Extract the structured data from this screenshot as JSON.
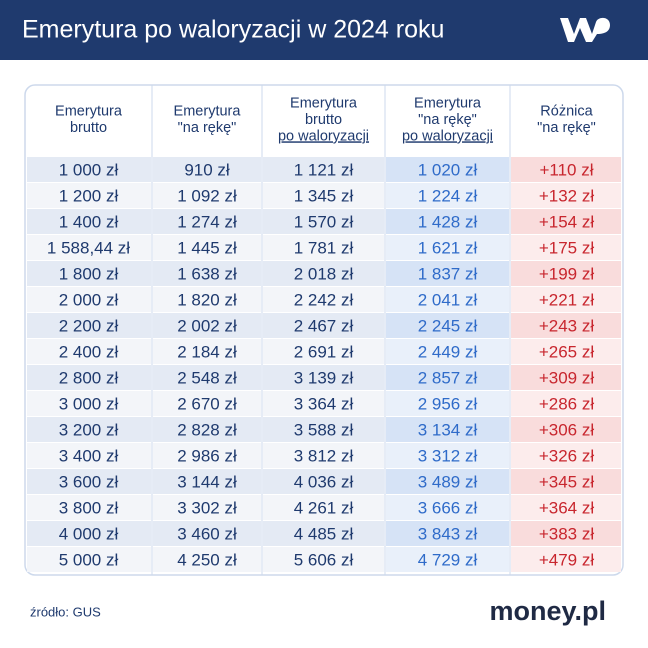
{
  "header": {
    "title": "Emerytura po waloryzacji w 2024 roku"
  },
  "table": {
    "columns": [
      [
        "Emerytura",
        "brutto"
      ],
      [
        "Emerytura",
        "\"na rękę\""
      ],
      [
        "Emerytura",
        "brutto",
        "po waloryzacji"
      ],
      [
        "Emerytura",
        "\"na rękę\"",
        "po waloryzacji"
      ],
      [
        "Różnica",
        "\"na rękę\""
      ]
    ],
    "rows": [
      [
        "1 000 zł",
        "910 zł",
        "1 121 zł",
        "1 020 zł",
        "+110 zł"
      ],
      [
        "1 200 zł",
        "1 092 zł",
        "1 345 zł",
        "1 224 zł",
        "+132 zł"
      ],
      [
        "1 400 zł",
        "1 274 zł",
        "1 570 zł",
        "1 428 zł",
        "+154 zł"
      ],
      [
        "1 588,44 zł",
        "1 445 zł",
        "1 781 zł",
        "1 621 zł",
        "+175 zł"
      ],
      [
        "1 800 zł",
        "1 638 zł",
        "2 018 zł",
        "1 837 zł",
        "+199 zł"
      ],
      [
        "2 000 zł",
        "1 820 zł",
        "2 242 zł",
        "2 041 zł",
        "+221 zł"
      ],
      [
        "2 200 zł",
        "2 002 zł",
        "2 467 zł",
        "2 245 zł",
        "+243 zł"
      ],
      [
        "2 400 zł",
        "2 184 zł",
        "2 691 zł",
        "2 449 zł",
        "+265 zł"
      ],
      [
        "2 800 zł",
        "2 548 zł",
        "3 139 zł",
        "2 857 zł",
        "+309 zł"
      ],
      [
        "3 000 zł",
        "2 670 zł",
        "3 364 zł",
        "2 956 zł",
        "+286 zł"
      ],
      [
        "3 200 zł",
        "2 828 zł",
        "3 588 zł",
        "3 134 zł",
        "+306 zł"
      ],
      [
        "3 400 zł",
        "2 986 zł",
        "3 812 zł",
        "3 312 zł",
        "+326 zł"
      ],
      [
        "3 600 zł",
        "3 144 zł",
        "4 036 zł",
        "3 489 zł",
        "+345 zł"
      ],
      [
        "3 800 zł",
        "3 302 zł",
        "4 261 zł",
        "3 666 zł",
        "+364 zł"
      ],
      [
        "4 000 zł",
        "3 460 zł",
        "4 485 zł",
        "3 843 zł",
        "+383 zł"
      ],
      [
        "5 000 zł",
        "4 250 zł",
        "5 606 zł",
        "4 729 zł",
        "+479 zł"
      ]
    ]
  },
  "footer": {
    "source": "źródło: GUS",
    "brand": "money.pl"
  }
}
